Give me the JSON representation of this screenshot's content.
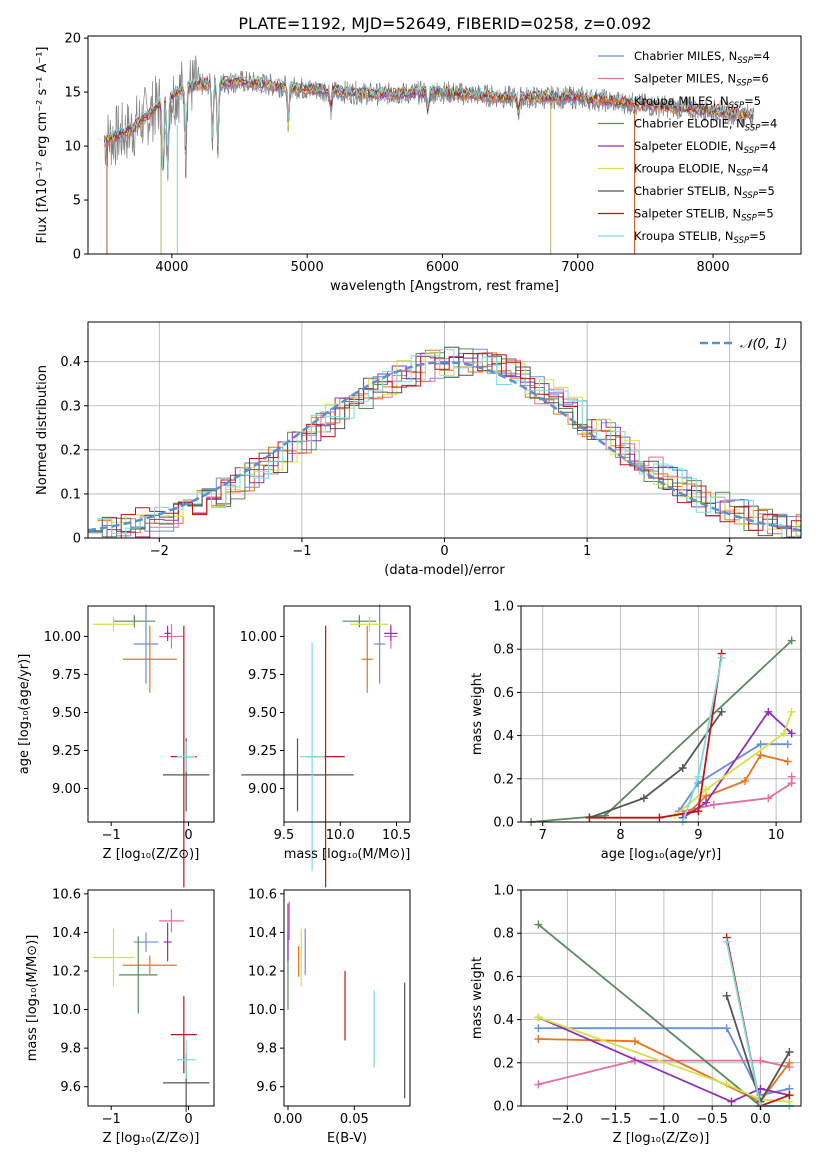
{
  "title": "PLATE=1192, MJD=52649, FIBERID=0258, z=0.092",
  "colors": [
    "#6a8fd6",
    "#e36f9f",
    "#e8741f",
    "#5a8a5e",
    "#9030b5",
    "#d6e04a",
    "#555555",
    "#c01515",
    "#7fdcdc"
  ],
  "spectrum": {
    "xlabel": "wavelength [Angstrom, rest frame]",
    "ylabel": "Flux [fλ10⁻¹⁷ erg cm⁻² s⁻¹ A⁻¹]",
    "legend": [
      "Chabrier MILES, N_SSP=4",
      "Salpeter MILES, N_SSP=6",
      "Kroupa MILES, N_SSP=5",
      "Chabrier ELODIE, N_SSP=4",
      "Salpeter ELODIE, N_SSP=4",
      "Kroupa ELODIE, N_SSP=4",
      "Chabrier STELIB, N_SSP=5",
      "Salpeter STELIB, N_SSP=5",
      "Kroupa STELIB, N_SSP=5"
    ]
  },
  "hist": {
    "xlabel": "(data-model)/error",
    "ylabel": "Normed distribution",
    "legend": "𝒩(0, 1)"
  },
  "labels": {
    "age": "age  [log₁₀(age/yr)]",
    "Z": "Z [log₁₀(Z/Z⊙)]",
    "mass": "mass [log₁₀(M/M⊙)]",
    "ebv": "E(B-V)",
    "mw": "mass weight"
  },
  "chart_data": [
    {
      "type": "line",
      "title": "PLATE=1192, MJD=52649, FIBERID=0258, z=0.092",
      "xlim": [
        3380,
        8650
      ],
      "ylim": [
        0,
        20.2
      ],
      "xticks": [
        4000,
        5000,
        6000,
        7000,
        8000
      ],
      "yticks": [
        0,
        5,
        10,
        15,
        20
      ],
      "observed_continuum": [
        [
          3500,
          10.5
        ],
        [
          3700,
          11.5
        ],
        [
          3900,
          13.8
        ],
        [
          4100,
          15.5
        ],
        [
          4500,
          16.0
        ],
        [
          5000,
          15.3
        ],
        [
          5500,
          14.8
        ],
        [
          6000,
          15.0
        ],
        [
          6500,
          14.5
        ],
        [
          7000,
          14.5
        ],
        [
          7500,
          13.8
        ],
        [
          8000,
          13.3
        ],
        [
          8300,
          12.8
        ]
      ],
      "note_series": "nine model fits, one per legend entry"
    },
    {
      "type": "bar",
      "xlim": [
        -2.5,
        2.5
      ],
      "ylim": [
        0,
        0.49
      ],
      "xticks": [
        -2,
        -1,
        0,
        1,
        2
      ],
      "yticks": [
        0,
        0.1,
        0.2,
        0.3,
        0.4
      ],
      "bin_width": 0.1,
      "reference_curve": "N(0,1)"
    },
    {
      "type": "scatter",
      "panel": "age vs Z",
      "xlim": [
        -1.3,
        0.33
      ],
      "ylim": [
        8.78,
        10.2
      ],
      "xticks": [
        -1,
        0
      ],
      "yticks": [
        9.0,
        9.25,
        9.5,
        9.75,
        10.0
      ],
      "points": [
        {
          "x": -0.55,
          "y": 9.95,
          "xerr": 0.16,
          "yerr": 0.26
        },
        {
          "x": -0.22,
          "y": 10.0,
          "xerr": 0.16,
          "yerr": 0.08
        },
        {
          "x": -0.5,
          "y": 9.85,
          "xerr": 0.35,
          "yerr": 0.22
        },
        {
          "x": -0.7,
          "y": 10.1,
          "xerr": 0.27,
          "yerr": 0.04
        },
        {
          "x": -0.27,
          "y": 10.02,
          "xerr": 0.04,
          "yerr": 0.05
        },
        {
          "x": -0.97,
          "y": 10.08,
          "xerr": 0.27,
          "yerr": 0.05
        },
        {
          "x": -0.03,
          "y": 9.09,
          "xerr": 0.3,
          "yerr": 0.24
        },
        {
          "x": -0.06,
          "y": 9.21,
          "xerr": 0.17,
          "yerr": 0.86
        },
        {
          "x": -0.03,
          "y": 9.21,
          "xerr": 0.12,
          "yerr": 0.1
        }
      ]
    },
    {
      "type": "scatter",
      "panel": "age vs mass",
      "xlim": [
        9.5,
        10.62
      ],
      "ylim": [
        8.78,
        10.2
      ],
      "xticks": [
        9.5,
        10.0,
        10.5
      ],
      "yticks": [
        9.0,
        9.25,
        9.5,
        9.75,
        10.0
      ],
      "points": [
        {
          "x": 10.35,
          "y": 9.95,
          "xerr": 0.05,
          "yerr": 0.26
        },
        {
          "x": 10.45,
          "y": 10.0,
          "xerr": 0.06,
          "yerr": 0.08
        },
        {
          "x": 10.24,
          "y": 9.85,
          "xerr": 0.05,
          "yerr": 0.22
        },
        {
          "x": 10.17,
          "y": 10.1,
          "xerr": 0.15,
          "yerr": 0.04
        },
        {
          "x": 10.45,
          "y": 10.02,
          "xerr": 0.06,
          "yerr": 0.05
        },
        {
          "x": 10.26,
          "y": 10.08,
          "xerr": 0.17,
          "yerr": 0.05
        },
        {
          "x": 9.62,
          "y": 9.09,
          "xerr": 0.5,
          "yerr": 0.24
        },
        {
          "x": 9.87,
          "y": 9.21,
          "xerr": 0.17,
          "yerr": 0.86
        },
        {
          "x": 9.75,
          "y": 9.21,
          "xerr": 0.11,
          "yerr": 0.75
        }
      ]
    },
    {
      "type": "line",
      "panel": "mass weight vs age",
      "xlim": [
        6.72,
        10.32
      ],
      "ylim": [
        0,
        1.0
      ],
      "xticks": [
        7,
        8,
        9,
        10
      ],
      "yticks": [
        0,
        0.2,
        0.4,
        0.6,
        0.8,
        1.0
      ],
      "series": [
        {
          "points": [
            [
              8.75,
              0.05
            ],
            [
              9.0,
              0.18
            ],
            [
              9.8,
              0.36
            ],
            [
              10.15,
              0.36
            ]
          ]
        },
        {
          "points": [
            [
              8.8,
              0.05
            ],
            [
              9.2,
              0.08
            ],
            [
              9.9,
              0.11
            ],
            [
              10.2,
              0.18
            ],
            [
              10.2,
              0.21
            ]
          ]
        },
        {
          "points": [
            [
              8.8,
              0.02
            ],
            [
              9.1,
              0.12
            ],
            [
              9.6,
              0.19
            ],
            [
              9.8,
              0.31
            ],
            [
              10.15,
              0.28
            ]
          ]
        },
        {
          "points": [
            [
              6.85,
              0.0
            ],
            [
              7.8,
              0.03
            ],
            [
              10.2,
              0.84
            ]
          ]
        },
        {
          "points": [
            [
              8.8,
              0.02
            ],
            [
              9.1,
              0.09
            ],
            [
              9.9,
              0.51
            ],
            [
              10.2,
              0.41
            ]
          ]
        },
        {
          "points": [
            [
              8.7,
              0.03
            ],
            [
              9.1,
              0.15
            ],
            [
              10.1,
              0.41
            ],
            [
              10.2,
              0.51
            ]
          ]
        },
        {
          "points": [
            [
              7.6,
              0.02
            ],
            [
              8.3,
              0.11
            ],
            [
              8.8,
              0.25
            ],
            [
              9.3,
              0.51
            ]
          ]
        },
        {
          "points": [
            [
              7.6,
              0.02
            ],
            [
              8.5,
              0.02
            ],
            [
              9.0,
              0.05
            ],
            [
              9.3,
              0.78
            ]
          ]
        },
        {
          "points": [
            [
              8.8,
              0.0
            ],
            [
              9.0,
              0.21
            ],
            [
              9.3,
              0.76
            ]
          ]
        }
      ]
    },
    {
      "type": "scatter",
      "panel": "mass vs Z",
      "xlim": [
        -1.3,
        0.33
      ],
      "ylim": [
        9.5,
        10.62
      ],
      "xticks": [
        -1,
        0
      ],
      "yticks": [
        9.6,
        9.8,
        10.0,
        10.2,
        10.4,
        10.6
      ],
      "points": [
        {
          "x": -0.55,
          "y": 10.35,
          "xerr": 0.16,
          "yerr": 0.05
        },
        {
          "x": -0.22,
          "y": 10.46,
          "xerr": 0.16,
          "yerr": 0.06
        },
        {
          "x": -0.5,
          "y": 10.23,
          "xerr": 0.35,
          "yerr": 0.05
        },
        {
          "x": -0.65,
          "y": 10.18,
          "xerr": 0.25,
          "yerr": 0.2
        },
        {
          "x": -0.27,
          "y": 10.35,
          "xerr": 0.05,
          "yerr": 0.1
        },
        {
          "x": -0.97,
          "y": 10.27,
          "xerr": 0.27,
          "yerr": 0.15
        },
        {
          "x": -0.03,
          "y": 9.62,
          "xerr": 0.3,
          "yerr": 0.15
        },
        {
          "x": -0.06,
          "y": 9.87,
          "xerr": 0.17,
          "yerr": 0.2
        },
        {
          "x": -0.03,
          "y": 9.74,
          "xerr": 0.12,
          "yerr": 0.1
        }
      ]
    },
    {
      "type": "scatter",
      "panel": "mass vs E(B-V)",
      "xlim": [
        -0.003,
        0.092
      ],
      "ylim": [
        9.5,
        10.62
      ],
      "xticks": [
        0.0,
        0.05
      ],
      "yticks": [
        9.6,
        9.8,
        10.0,
        10.2,
        10.4,
        10.6
      ],
      "points": [
        {
          "x": 0.013,
          "y": 10.3,
          "yerr": 0.12
        },
        {
          "x": 0.001,
          "y": 10.46,
          "yerr": 0.1
        },
        {
          "x": 0.008,
          "y": 10.25,
          "yerr": 0.08
        },
        {
          "x": 0.0,
          "y": 10.2,
          "yerr": 0.2
        },
        {
          "x": 0.0,
          "y": 10.4,
          "yerr": 0.15
        },
        {
          "x": 0.01,
          "y": 10.27,
          "yerr": 0.15
        },
        {
          "x": 0.088,
          "y": 9.84,
          "yerr": 0.3
        },
        {
          "x": 0.043,
          "y": 10.02,
          "yerr": 0.18
        },
        {
          "x": 0.065,
          "y": 9.9,
          "yerr": 0.2
        }
      ]
    },
    {
      "type": "line",
      "panel": "mass weight vs Z",
      "xlim": [
        -2.48,
        0.42
      ],
      "ylim": [
        0,
        1.0
      ],
      "xticks": [
        -2.0,
        -1.5,
        -1.0,
        -0.5,
        0.0
      ],
      "yticks": [
        0,
        0.2,
        0.4,
        0.6,
        0.8,
        1.0
      ],
      "series": [
        {
          "points": [
            [
              -2.3,
              0.36
            ],
            [
              -0.35,
              0.36
            ],
            [
              0.0,
              0.05
            ],
            [
              0.3,
              0.08
            ]
          ]
        },
        {
          "points": [
            [
              -2.3,
              0.1
            ],
            [
              -1.3,
              0.21
            ],
            [
              0.0,
              0.21
            ],
            [
              0.3,
              0.18
            ]
          ]
        },
        {
          "points": [
            [
              -2.3,
              0.31
            ],
            [
              -1.3,
              0.3
            ],
            [
              0.0,
              0.02
            ],
            [
              0.3,
              0.2
            ]
          ]
        },
        {
          "points": [
            [
              -2.3,
              0.84
            ],
            [
              0.0,
              0.0
            ],
            [
              0.3,
              0.0
            ]
          ]
        },
        {
          "points": [
            [
              -2.3,
              0.41
            ],
            [
              -0.3,
              0.02
            ],
            [
              0.0,
              0.08
            ],
            [
              0.3,
              0.05
            ]
          ]
        },
        {
          "points": [
            [
              -2.3,
              0.41
            ],
            [
              -0.35,
              0.1
            ],
            [
              0.0,
              0.03
            ],
            [
              0.3,
              0.02
            ]
          ]
        },
        {
          "points": [
            [
              -0.35,
              0.51
            ],
            [
              0.0,
              0.02
            ],
            [
              0.3,
              0.25
            ]
          ]
        },
        {
          "points": [
            [
              -0.35,
              0.78
            ],
            [
              0.0,
              0.0
            ],
            [
              0.3,
              0.05
            ]
          ]
        },
        {
          "points": [
            [
              -0.35,
              0.76
            ],
            [
              0.0,
              0.0
            ],
            [
              0.3,
              0.0
            ]
          ]
        }
      ]
    }
  ]
}
